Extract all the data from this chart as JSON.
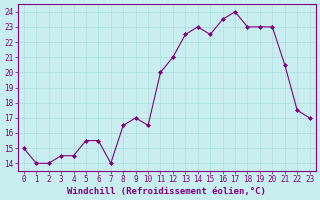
{
  "x": [
    0,
    1,
    2,
    3,
    4,
    5,
    6,
    7,
    8,
    9,
    10,
    11,
    12,
    13,
    14,
    15,
    16,
    17,
    18,
    19,
    20,
    21,
    22,
    23
  ],
  "y": [
    15,
    14,
    14,
    14.5,
    14.5,
    15.5,
    15.5,
    14,
    16.5,
    17,
    16.5,
    20,
    21,
    22.5,
    23,
    22.5,
    23.5,
    24,
    23,
    23,
    23,
    20.5,
    17.5,
    17
  ],
  "line_color": "#800080",
  "marker": "D",
  "marker_size": 2.0,
  "linewidth": 0.8,
  "xlabel": "Windchill (Refroidissement éolien,°C)",
  "xlabel_fontsize": 6.5,
  "tick_fontsize": 5.5,
  "xlim": [
    -0.5,
    23.5
  ],
  "ylim": [
    13.5,
    24.5
  ],
  "yticks": [
    14,
    15,
    16,
    17,
    18,
    19,
    20,
    21,
    22,
    23,
    24
  ],
  "xticks": [
    0,
    1,
    2,
    3,
    4,
    5,
    6,
    7,
    8,
    9,
    10,
    11,
    12,
    13,
    14,
    15,
    16,
    17,
    18,
    19,
    20,
    21,
    22,
    23
  ],
  "bg_color": "#c8eef0",
  "grid_color": "#aadddd",
  "axes_label_color": "#800080",
  "tick_color": "#800080",
  "spine_color": "#800080"
}
